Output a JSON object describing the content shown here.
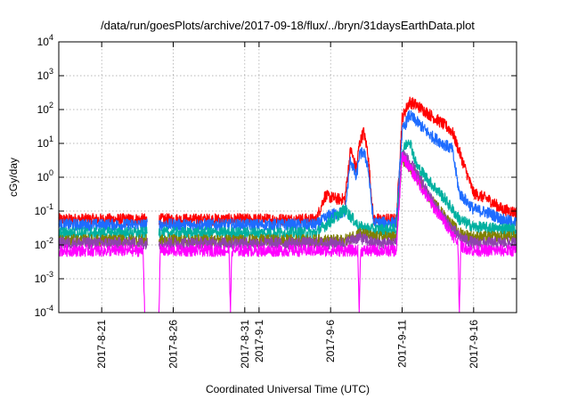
{
  "chart_data": {
    "type": "line",
    "title": "/data/run/goesPlots/archive/2017-09-18/flux/../bryn/31daysEarthData.plot",
    "xlabel": "Coordinated Universal Time (UTC)",
    "ylabel": "cGy/day",
    "yscale": "log",
    "ylim": [
      0.0001,
      10000
    ],
    "xlim": [
      "2017-08-18",
      "2017-09-19"
    ],
    "grid": true,
    "legend": "none",
    "y_ticks": [
      {
        "value": 0.0001,
        "base": "10",
        "exp": "-4"
      },
      {
        "value": 0.001,
        "base": "10",
        "exp": "-3"
      },
      {
        "value": 0.01,
        "base": "10",
        "exp": "-2"
      },
      {
        "value": 0.1,
        "base": "10",
        "exp": "-1"
      },
      {
        "value": 1,
        "base": "10",
        "exp": "0"
      },
      {
        "value": 10,
        "base": "10",
        "exp": "1"
      },
      {
        "value": 100,
        "base": "10",
        "exp": "2"
      },
      {
        "value": 1000,
        "base": "10",
        "exp": "3"
      },
      {
        "value": 10000,
        "base": "10",
        "exp": "4"
      }
    ],
    "x_ticks": [
      {
        "date": "2017-08-21",
        "label": "2017-8-21"
      },
      {
        "date": "2017-08-26",
        "label": "2017-8-26"
      },
      {
        "date": "2017-08-31",
        "label": "2017-8-31"
      },
      {
        "date": "2017-09-01",
        "label": "2017-9-1"
      },
      {
        "date": "2017-09-06",
        "label": "2017-9-6"
      },
      {
        "date": "2017-09-11",
        "label": "2017-9-11"
      },
      {
        "date": "2017-09-16",
        "label": "2017-9-16"
      }
    ],
    "series": [
      {
        "color": "#ff0000",
        "x": [
          "2017-08-18",
          "2017-08-22",
          "2017-08-24",
          "2017-08-25",
          "2017-08-30",
          "2017-09-05",
          "2017-09-05.6",
          "2017-09-06.5",
          "2017-09-07",
          "2017-09-07.4",
          "2017-09-07.8",
          "2017-09-08",
          "2017-09-08.3",
          "2017-09-08.6",
          "2017-09-09",
          "2017-09-10",
          "2017-09-10.6",
          "2017-09-11",
          "2017-09-11.5",
          "2017-09-12",
          "2017-09-13",
          "2017-09-14",
          "2017-09-14.5",
          "2017-09-15",
          "2017-09-16",
          "2017-09-17",
          "2017-09-18",
          "2017-09-19"
        ],
        "y": [
          0.05,
          0.05,
          0.05,
          0.05,
          0.05,
          0.05,
          0.25,
          0.2,
          0.2,
          6,
          1.5,
          8,
          20,
          5,
          0.05,
          0.05,
          0.05,
          50,
          150,
          120,
          60,
          30,
          20,
          5,
          0.3,
          0.2,
          0.1,
          0.08
        ]
      },
      {
        "color": "#1e6cff",
        "x": [
          "2017-08-18",
          "2017-08-22",
          "2017-08-24",
          "2017-08-25",
          "2017-08-30",
          "2017-09-05",
          "2017-09-06",
          "2017-09-07",
          "2017-09-07.4",
          "2017-09-07.8",
          "2017-09-08",
          "2017-09-08.3",
          "2017-09-08.6",
          "2017-09-09",
          "2017-09-10",
          "2017-09-10.6",
          "2017-09-11",
          "2017-09-11.5",
          "2017-09-12",
          "2017-09-13",
          "2017-09-14",
          "2017-09-14.5",
          "2017-09-15",
          "2017-09-16",
          "2017-09-17",
          "2017-09-18",
          "2017-09-19"
        ],
        "y": [
          0.035,
          0.035,
          0.035,
          0.035,
          0.035,
          0.035,
          0.07,
          0.08,
          3,
          0.8,
          4,
          5,
          2,
          0.04,
          0.04,
          0.04,
          20,
          60,
          40,
          15,
          8,
          6,
          0.3,
          0.1,
          0.08,
          0.05,
          0.04
        ]
      },
      {
        "color": "#00b0a0",
        "x": [
          "2017-08-18",
          "2017-08-24",
          "2017-08-25",
          "2017-09-05",
          "2017-09-07",
          "2017-09-08",
          "2017-09-09",
          "2017-09-10.6",
          "2017-09-11",
          "2017-09-11.5",
          "2017-09-12",
          "2017-09-13",
          "2017-09-14",
          "2017-09-15",
          "2017-09-16",
          "2017-09-19"
        ],
        "y": [
          0.02,
          0.02,
          0.02,
          0.02,
          0.1,
          0.03,
          0.025,
          0.025,
          5,
          12,
          2,
          0.6,
          0.2,
          0.05,
          0.03,
          0.025
        ]
      },
      {
        "color": "#808000",
        "x": [
          "2017-08-18",
          "2017-09-07",
          "2017-09-08",
          "2017-09-09",
          "2017-09-10.6",
          "2017-09-11",
          "2017-09-12",
          "2017-09-13",
          "2017-09-14",
          "2017-09-15",
          "2017-09-16",
          "2017-09-19"
        ],
        "y": [
          0.012,
          0.012,
          0.02,
          0.015,
          0.015,
          3,
          1,
          0.2,
          0.06,
          0.02,
          0.015,
          0.015
        ]
      },
      {
        "color": "#8e44ad",
        "x": [
          "2017-08-18",
          "2017-09-07",
          "2017-09-08",
          "2017-09-09",
          "2017-09-10.6",
          "2017-09-11",
          "2017-09-12",
          "2017-09-13",
          "2017-09-14",
          "2017-09-15",
          "2017-09-16",
          "2017-09-19"
        ],
        "y": [
          0.01,
          0.01,
          0.015,
          0.01,
          0.01,
          5,
          1.2,
          0.2,
          0.05,
          0.015,
          0.01,
          0.01
        ]
      },
      {
        "color": "#ff00ff",
        "x": [
          "2017-08-18",
          "2017-08-23.9",
          "2017-08-24",
          "2017-08-24.2",
          "2017-08-25",
          "2017-08-25.1",
          "2017-08-29.9",
          "2017-08-30",
          "2017-08-30.1",
          "2017-09-07.9",
          "2017-09-08",
          "2017-09-08.1",
          "2017-09-10.6",
          "2017-09-11",
          "2017-09-12",
          "2017-09-13",
          "2017-09-14",
          "2017-09-14.9",
          "2017-09-15",
          "2017-09-15.1",
          "2017-09-16",
          "2017-09-19"
        ],
        "y": [
          0.006,
          0.006,
          0.0001,
          0.0001,
          0.0001,
          0.006,
          0.006,
          0.0001,
          0.006,
          0.006,
          0.0001,
          0.006,
          0.006,
          4,
          0.8,
          0.15,
          0.04,
          0.01,
          0.0001,
          0.008,
          0.006,
          0.006
        ]
      }
    ]
  }
}
